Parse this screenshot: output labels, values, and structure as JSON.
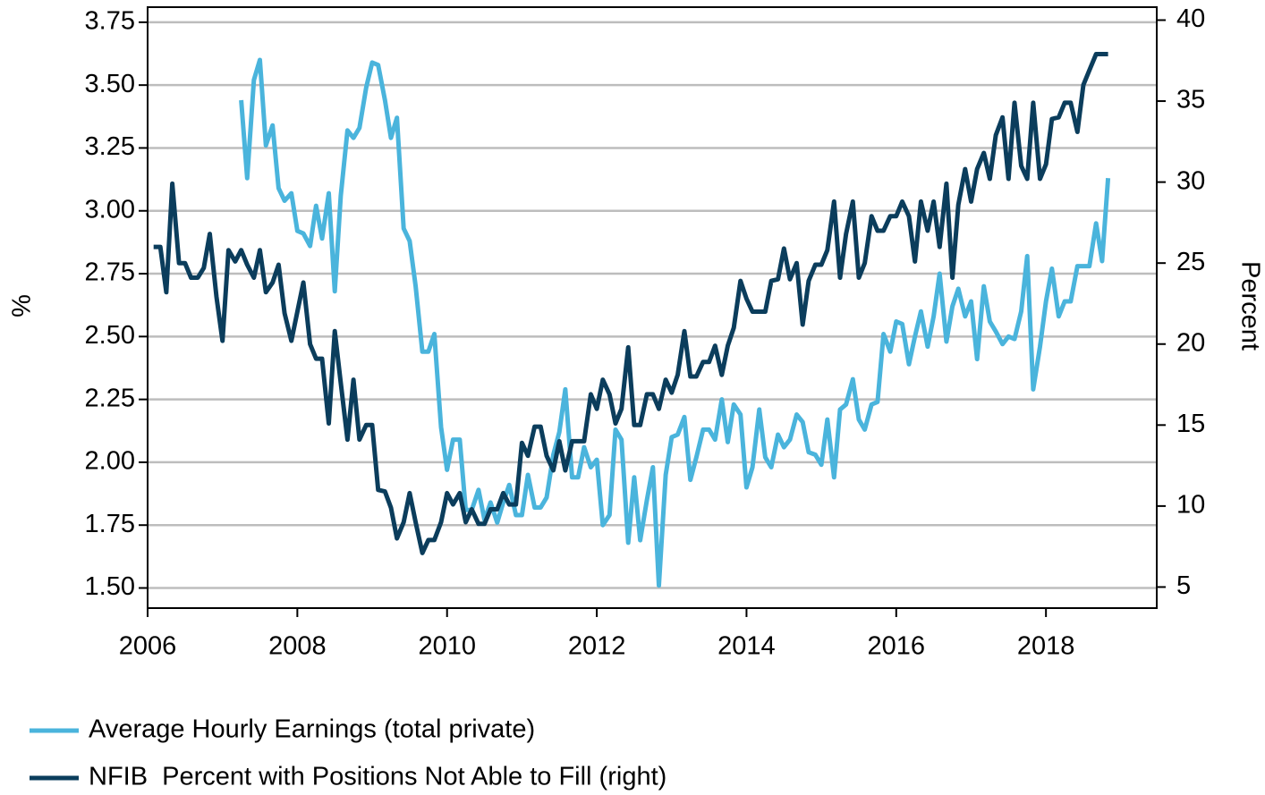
{
  "chart_data": {
    "type": "line",
    "y_label": "%",
    "y2_label": "Percent",
    "x": [
      2006.08,
      2006.17,
      2006.25,
      2006.33,
      2006.42,
      2006.5,
      2006.58,
      2006.67,
      2006.75,
      2006.83,
      2006.92,
      2007.0,
      2007.08,
      2007.17,
      2007.25,
      2007.33,
      2007.42,
      2007.5,
      2007.58,
      2007.67,
      2007.75,
      2007.83,
      2007.92,
      2008.0,
      2008.08,
      2008.17,
      2008.25,
      2008.33,
      2008.42,
      2008.5,
      2008.58,
      2008.67,
      2008.75,
      2008.83,
      2008.92,
      2009.0,
      2009.08,
      2009.17,
      2009.25,
      2009.33,
      2009.42,
      2009.5,
      2009.58,
      2009.67,
      2009.75,
      2009.83,
      2009.92,
      2010.0,
      2010.08,
      2010.17,
      2010.25,
      2010.33,
      2010.42,
      2010.5,
      2010.58,
      2010.67,
      2010.75,
      2010.83,
      2010.92,
      2011.0,
      2011.08,
      2011.17,
      2011.25,
      2011.33,
      2011.42,
      2011.5,
      2011.58,
      2011.67,
      2011.75,
      2011.83,
      2011.92,
      2012.0,
      2012.08,
      2012.17,
      2012.25,
      2012.33,
      2012.42,
      2012.5,
      2012.58,
      2012.67,
      2012.75,
      2012.83,
      2012.92,
      2013.0,
      2013.08,
      2013.17,
      2013.25,
      2013.33,
      2013.42,
      2013.5,
      2013.58,
      2013.67,
      2013.75,
      2013.83,
      2013.92,
      2014.0,
      2014.08,
      2014.17,
      2014.25,
      2014.33,
      2014.42,
      2014.5,
      2014.58,
      2014.67,
      2014.75,
      2014.83,
      2014.92,
      2015.0,
      2015.08,
      2015.17,
      2015.25,
      2015.33,
      2015.42,
      2015.5,
      2015.58,
      2015.67,
      2015.75,
      2015.83,
      2015.92,
      2016.0,
      2016.08,
      2016.17,
      2016.25,
      2016.33,
      2016.42,
      2016.5,
      2016.58,
      2016.67,
      2016.75,
      2016.83,
      2016.92,
      2017.0,
      2017.08,
      2017.17,
      2017.25,
      2017.33,
      2017.42,
      2017.5,
      2017.58,
      2017.67,
      2017.75,
      2017.83,
      2017.92,
      2018.0,
      2018.08,
      2018.17,
      2018.25,
      2018.33,
      2018.42,
      2018.5,
      2018.58,
      2018.67,
      2018.75,
      2018.83
    ],
    "series": [
      {
        "name": "Average Hourly Earnings (total private)",
        "color": "#4ab4dc",
        "axis": "y",
        "values": [
          null,
          null,
          null,
          null,
          null,
          null,
          null,
          null,
          null,
          null,
          null,
          null,
          null,
          null,
          3.44,
          3.13,
          3.52,
          3.6,
          3.26,
          3.34,
          3.09,
          3.04,
          3.07,
          2.92,
          2.91,
          2.86,
          3.02,
          2.89,
          3.07,
          2.68,
          3.06,
          3.32,
          3.29,
          3.33,
          3.49,
          3.59,
          3.58,
          3.44,
          3.29,
          3.37,
          2.93,
          2.88,
          2.7,
          2.44,
          2.44,
          2.51,
          2.14,
          1.97,
          2.09,
          2.09,
          1.81,
          1.81,
          1.89,
          1.77,
          1.84,
          1.76,
          1.84,
          1.91,
          1.79,
          1.79,
          1.95,
          1.82,
          1.82,
          1.86,
          2.03,
          2.12,
          2.29,
          1.94,
          1.94,
          2.06,
          1.98,
          2.01,
          1.75,
          1.79,
          2.13,
          2.09,
          1.68,
          1.94,
          1.69,
          1.85,
          1.98,
          1.51,
          1.95,
          2.1,
          2.11,
          2.18,
          1.93,
          2.02,
          2.13,
          2.13,
          2.09,
          2.25,
          2.08,
          2.23,
          2.19,
          1.9,
          1.98,
          2.21,
          2.02,
          1.98,
          2.11,
          2.06,
          2.09,
          2.19,
          2.16,
          2.04,
          2.03,
          1.99,
          2.17,
          1.94,
          2.21,
          2.23,
          2.33,
          2.17,
          2.13,
          2.23,
          2.24,
          2.51,
          2.44,
          2.56,
          2.55,
          2.39,
          2.5,
          2.6,
          2.46,
          2.58,
          2.75,
          2.48,
          2.62,
          2.69,
          2.58,
          2.64,
          2.41,
          2.7,
          2.56,
          2.52,
          2.47,
          2.5,
          2.49,
          2.6,
          2.82,
          2.29,
          2.46,
          2.64,
          2.77,
          2.58,
          2.64,
          2.64,
          2.78,
          2.78,
          2.78,
          2.95,
          2.8,
          3.13
        ]
      },
      {
        "name": "NFIB  Percent with Positions Not Able to Fill (right)",
        "color": "#0b3d5c",
        "axis": "y2",
        "values": [
          26.0,
          26.0,
          23.2,
          29.9,
          25.0,
          25.0,
          24.1,
          24.1,
          24.7,
          26.8,
          22.9,
          20.2,
          25.8,
          25.1,
          25.8,
          24.9,
          24.1,
          25.8,
          23.2,
          23.8,
          24.9,
          21.9,
          20.2,
          22.0,
          23.8,
          20.0,
          19.1,
          19.1,
          15.1,
          20.8,
          17.6,
          14.1,
          17.8,
          14.1,
          15.0,
          15.0,
          11.0,
          10.9,
          9.9,
          8.0,
          9.0,
          10.8,
          9.0,
          7.1,
          7.9,
          7.9,
          9.0,
          10.8,
          10.1,
          10.8,
          9.0,
          9.8,
          8.9,
          8.9,
          9.8,
          9.8,
          10.8,
          10.1,
          10.1,
          13.9,
          13.1,
          14.9,
          14.9,
          13.1,
          12.2,
          14.0,
          12.2,
          14.0,
          14.0,
          14.0,
          16.9,
          16.0,
          17.8,
          16.9,
          15.1,
          16.0,
          19.8,
          15.0,
          15.0,
          16.9,
          16.9,
          16.0,
          17.8,
          17.0,
          18.1,
          20.8,
          18.0,
          18.0,
          18.9,
          18.9,
          19.9,
          18.1,
          19.9,
          21.0,
          23.9,
          22.8,
          22.0,
          22.0,
          22.0,
          23.9,
          24.0,
          25.9,
          24.0,
          25.0,
          21.2,
          23.9,
          24.9,
          24.9,
          25.8,
          28.8,
          24.1,
          26.8,
          28.8,
          24.1,
          25.0,
          27.9,
          27.0,
          27.0,
          27.9,
          27.9,
          28.8,
          27.9,
          25.1,
          28.8,
          27.0,
          28.8,
          26.0,
          29.9,
          24.1,
          28.6,
          30.8,
          28.8,
          30.8,
          31.8,
          30.2,
          32.9,
          34.0,
          30.2,
          34.9,
          31.0,
          30.2,
          34.9,
          30.2,
          31.1,
          33.9,
          34.0,
          34.9,
          34.9,
          33.1,
          36.0,
          36.9,
          37.9,
          37.9,
          37.9
        ]
      }
    ],
    "xlim": [
      2006,
      2019.48
    ],
    "xticks": [
      2006,
      2008,
      2010,
      2012,
      2014,
      2016,
      2018
    ],
    "ylim": [
      1.42,
      3.81
    ],
    "yticks": [
      {
        "value": 1.5,
        "label": "1.50"
      },
      {
        "value": 1.75,
        "label": "1.75"
      },
      {
        "value": 2,
        "label": "2.00"
      },
      {
        "value": 2.25,
        "label": "2.25"
      },
      {
        "value": 2.5,
        "label": "2.50"
      },
      {
        "value": 2.75,
        "label": "2.75"
      },
      {
        "value": 3,
        "label": "3.00"
      },
      {
        "value": 3.25,
        "label": "3.25"
      },
      {
        "value": 3.5,
        "label": "3.50"
      },
      {
        "value": 3.75,
        "label": "3.75"
      }
    ],
    "y2lim": [
      3.7,
      40.8
    ],
    "y2ticks": [
      5,
      10,
      15,
      20,
      25,
      30,
      35,
      40
    ],
    "grid": true,
    "legend": "bottom"
  }
}
